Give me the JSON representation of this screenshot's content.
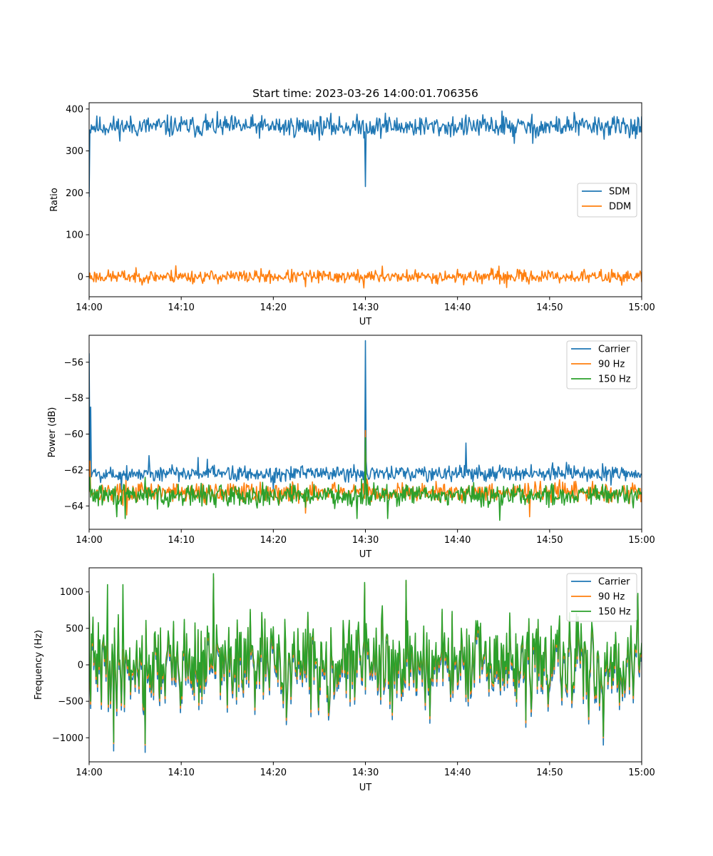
{
  "colors": {
    "blue": "#1f77b4",
    "orange": "#ff7f0e",
    "green": "#2ca02c"
  },
  "chart_data": [
    {
      "type": "line",
      "title": "Start time: 2023-03-26 14:00:01.706356",
      "xlabel": "UT",
      "ylabel": "Ratio",
      "xlim": [
        0,
        60
      ],
      "ylim": [
        -48,
        415
      ],
      "xtick_values": [
        0,
        10,
        20,
        30,
        40,
        50,
        60
      ],
      "xtick_labels": [
        "14:00",
        "14:10",
        "14:20",
        "14:30",
        "14:40",
        "14:50",
        "15:00"
      ],
      "ytick_values": [
        0,
        100,
        200,
        300,
        400
      ],
      "ytick_labels": [
        "0",
        "100",
        "200",
        "300",
        "400"
      ],
      "legend_position": "center-right",
      "series": [
        {
          "name": "SDM",
          "color": "#1f77b4",
          "baseline": 358,
          "noise": 18,
          "seed": 11,
          "points": [
            [
              0,
              190
            ],
            [
              0.12,
              350
            ],
            [
              0.25,
              362
            ],
            [
              30,
              215
            ],
            [
              44.8,
              395
            ],
            [
              46.2,
              318
            ],
            [
              48.2,
              318
            ],
            [
              52.7,
              392
            ],
            [
              12.7,
              388
            ],
            [
              32.2,
              390
            ]
          ]
        },
        {
          "name": "DDM",
          "color": "#ff7f0e",
          "baseline": 0,
          "noise": 11,
          "seed": 23,
          "points": [
            [
              9.4,
              26
            ],
            [
              31.8,
              25
            ],
            [
              44.5,
              25
            ],
            [
              29.8,
              -27
            ],
            [
              45.3,
              -26
            ],
            [
              23.5,
              -24
            ]
          ]
        }
      ]
    },
    {
      "type": "line",
      "title": "",
      "xlabel": "UT",
      "ylabel": "Power (dB)",
      "xlim": [
        0,
        60
      ],
      "ylim": [
        -65.3,
        -54.5
      ],
      "xtick_values": [
        0,
        10,
        20,
        30,
        40,
        50,
        60
      ],
      "xtick_labels": [
        "14:00",
        "14:10",
        "14:20",
        "14:30",
        "14:40",
        "14:50",
        "15:00"
      ],
      "ytick_values": [
        -64,
        -62,
        -60,
        -58,
        -56
      ],
      "ytick_labels": [
        "−64",
        "−62",
        "−60",
        "−58",
        "−56"
      ],
      "legend_position": "top-right",
      "series": [
        {
          "name": "Carrier",
          "color": "#1f77b4",
          "baseline": -62.2,
          "noise": 0.32,
          "seed": 5,
          "points": [
            [
              0,
              -55.5
            ],
            [
              0.15,
              -58.5
            ],
            [
              0.35,
              -62.2
            ],
            [
              29.95,
              -63.0
            ],
            [
              30.0,
              -54.8
            ],
            [
              30.08,
              -61.5
            ],
            [
              40.95,
              -60.5
            ],
            [
              6.5,
              -61.2
            ],
            [
              11.8,
              -61.3
            ],
            [
              12.8,
              -61.4
            ],
            [
              48,
              -61.7
            ],
            [
              50.3,
              -61.6
            ],
            [
              20,
              -63.1
            ],
            [
              3.5,
              -63.1
            ]
          ]
        },
        {
          "name": "90 Hz",
          "color": "#ff7f0e",
          "baseline": -63.25,
          "noise": 0.38,
          "seed": 17,
          "points": [
            [
              0.05,
              -61.5
            ],
            [
              0.2,
              -63.2
            ],
            [
              30.0,
              -59.8
            ],
            [
              30.15,
              -62.5
            ],
            [
              4.1,
              -64.5
            ],
            [
              23.5,
              -64.4
            ],
            [
              47.8,
              -64.6
            ]
          ]
        },
        {
          "name": "150 Hz",
          "color": "#2ca02c",
          "baseline": -63.4,
          "noise": 0.42,
          "seed": 29,
          "points": [
            [
              0.05,
              -62.4
            ],
            [
              30.0,
              -60.2
            ],
            [
              30.15,
              -62.8
            ],
            [
              3.0,
              -64.6
            ],
            [
              3.9,
              -64.7
            ],
            [
              29.1,
              -64.7
            ],
            [
              32.4,
              -64.7
            ],
            [
              44.6,
              -64.8
            ],
            [
              6.1,
              -62.4
            ],
            [
              29.6,
              -62.5
            ]
          ]
        }
      ]
    },
    {
      "type": "line",
      "title": "",
      "xlabel": "UT",
      "ylabel": "Frequency (Hz)",
      "xlim": [
        0,
        60
      ],
      "ylim": [
        -1330,
        1330
      ],
      "xtick_values": [
        0,
        10,
        20,
        30,
        40,
        50,
        60
      ],
      "xtick_labels": [
        "14:00",
        "14:10",
        "14:20",
        "14:30",
        "14:40",
        "14:50",
        "15:00"
      ],
      "ytick_values": [
        -1000,
        -500,
        0,
        500,
        1000
      ],
      "ytick_labels": [
        "−1000",
        "−500",
        "0",
        "500",
        "1000"
      ],
      "legend_position": "top-right",
      "series": [
        {
          "name": "Carrier",
          "color": "#1f77b4",
          "baseline": -60,
          "noise": 420,
          "seed": 41,
          "points": [
            [
              0,
              950
            ],
            [
              2.7,
              -1180
            ],
            [
              6.1,
              -1200
            ],
            [
              13.5,
              1180
            ],
            [
              29.9,
              1050
            ],
            [
              34.4,
              1100
            ],
            [
              55.8,
              -1100
            ],
            [
              59.6,
              900
            ]
          ]
        },
        {
          "name": "90 Hz",
          "color": "#ff7f0e",
          "baseline": 0,
          "noise": 420,
          "seed": 41,
          "points": [
            [
              0,
              950
            ],
            [
              2.7,
              -1080
            ],
            [
              6.1,
              -1100
            ],
            [
              13.5,
              1200
            ],
            [
              29.9,
              1100
            ],
            [
              34.4,
              1150
            ],
            [
              55.8,
              -1000
            ],
            [
              59.6,
              950
            ]
          ]
        },
        {
          "name": "150 Hz",
          "color": "#2ca02c",
          "baseline": 40,
          "noise": 420,
          "seed": 41,
          "points": [
            [
              0,
              980
            ],
            [
              2.7,
              -1060
            ],
            [
              6.1,
              -1080
            ],
            [
              13.5,
              1250
            ],
            [
              29.9,
              1130
            ],
            [
              34.4,
              1160
            ],
            [
              55.8,
              -980
            ],
            [
              59.6,
              980
            ],
            [
              2.0,
              1100
            ],
            [
              3.7,
              1100
            ]
          ]
        }
      ]
    }
  ]
}
